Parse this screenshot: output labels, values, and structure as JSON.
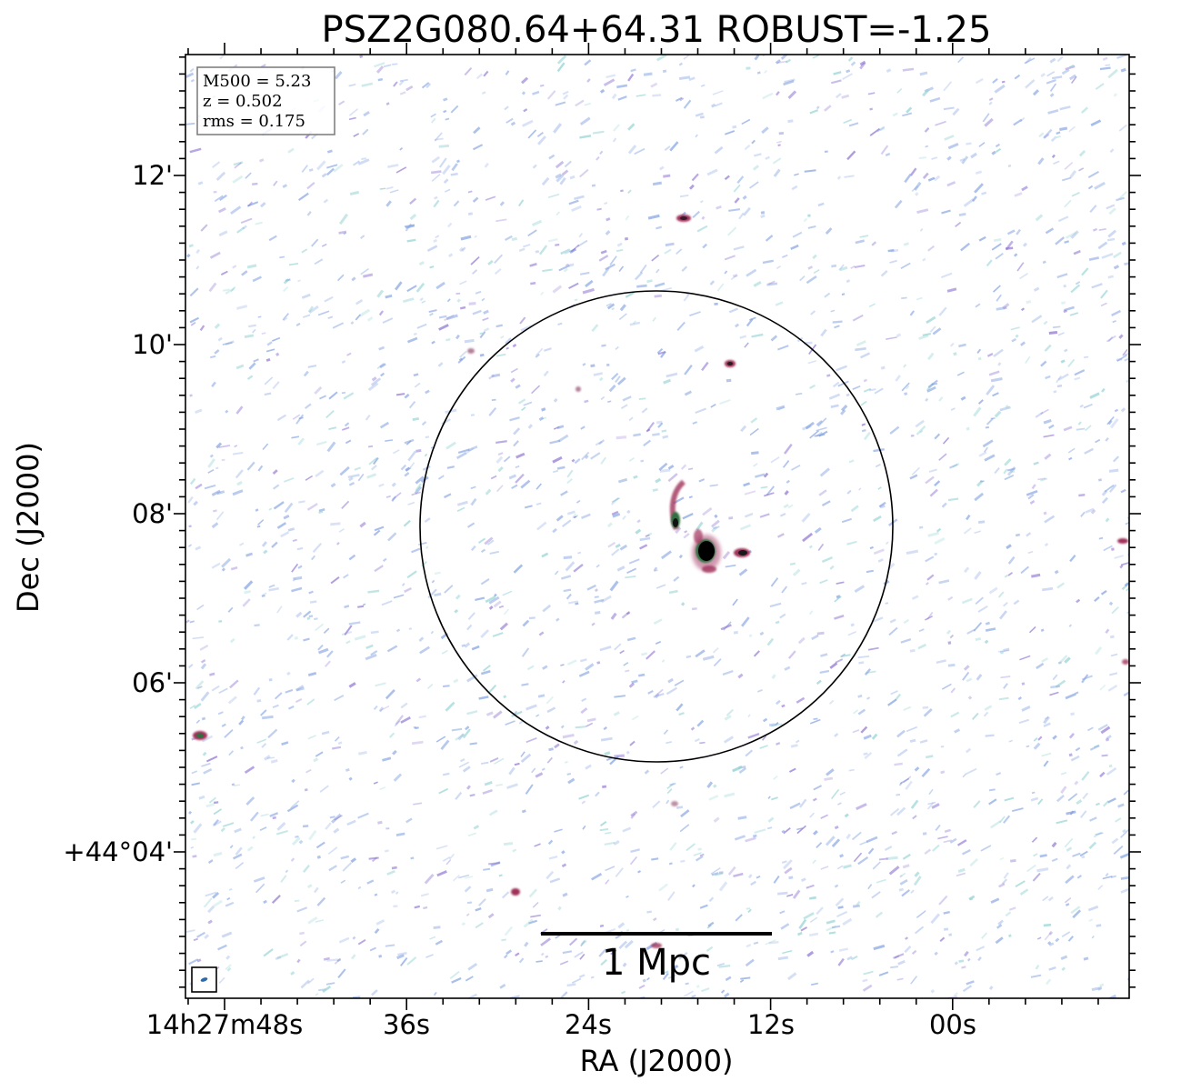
{
  "title": "PSZ2G080.64+64.31 ROBUST=-1.25",
  "info_box": {
    "lines": [
      "M500 = 5.23",
      "z = 0.502",
      "rms = 0.175"
    ]
  },
  "axes": {
    "xlabel": "RA (J2000)",
    "ylabel": "Dec (J2000)",
    "x_ticks": [
      "14h27m48s",
      "36s",
      "24s",
      "12s",
      "00s"
    ],
    "y_ticks": [
      "12'",
      "10'",
      "08'",
      "06'",
      "+44°04'"
    ]
  },
  "scale_bar": {
    "label": "1 Mpc"
  },
  "colors": {
    "noise_blue": "#7f9fe0",
    "noise_teal": "#8fd0d0",
    "noise_purple": "#8a6fd0",
    "source_red": "#a0305a",
    "source_core": "#000000",
    "source_green": "#2f6f3f",
    "circle": "#000000",
    "info_border": "#808080"
  }
}
